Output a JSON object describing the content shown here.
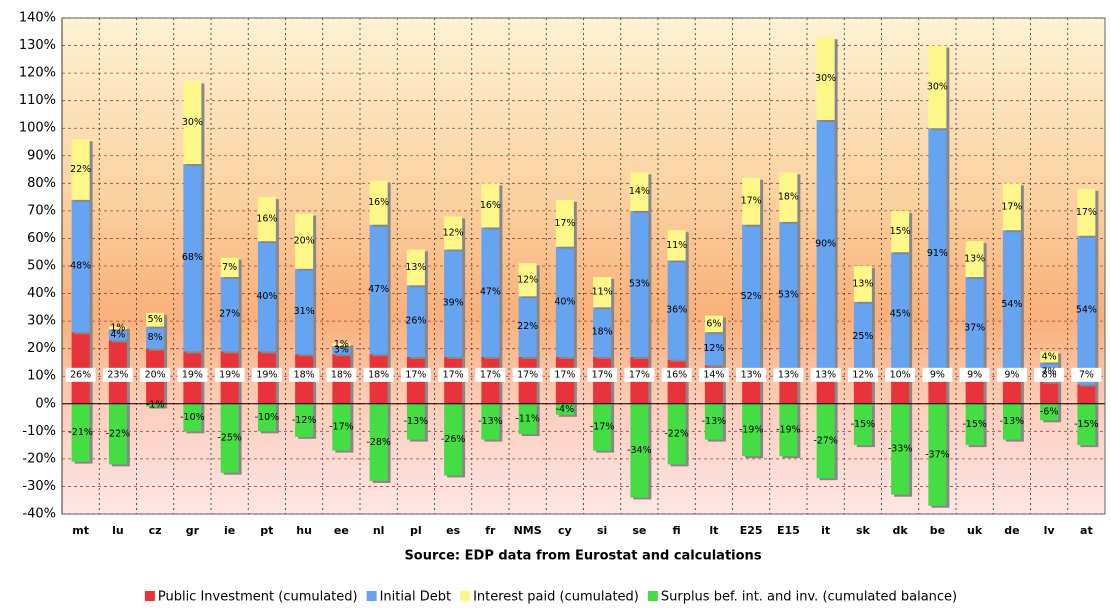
{
  "chart_data": {
    "type": "stacked_bar",
    "x_label": "Source: EDP data from Eurostat and calculations",
    "categories": [
      "mt",
      "lu",
      "cz",
      "gr",
      "ie",
      "pt",
      "hu",
      "ee",
      "nl",
      "pl",
      "es",
      "fr",
      "NMS",
      "cy",
      "si",
      "se",
      "fi",
      "lt",
      "E25",
      "E15",
      "it",
      "sk",
      "dk",
      "be",
      "uk",
      "de",
      "lv",
      "at"
    ],
    "series": [
      {
        "name": "Public Investment (cumulated)",
        "color": "#e8333a",
        "values": [
          26,
          23,
          20,
          19,
          19,
          19,
          18,
          18,
          18,
          17,
          17,
          17,
          17,
          17,
          17,
          17,
          16,
          14,
          13,
          13,
          13,
          12,
          10,
          9,
          9,
          9,
          8,
          7
        ],
        "value_labels": [
          "26%",
          "23%",
          "20%",
          "19%",
          "19%",
          "19%",
          "18%",
          "18%",
          "18%",
          "17%",
          "17%",
          "17%",
          "17%",
          "17%",
          "17%",
          "17%",
          "16%",
          "14%",
          "13%",
          "13%",
          "13%",
          "12%",
          "10%",
          "9%",
          "9%",
          "9%",
          "8%",
          "7%"
        ]
      },
      {
        "name": "Initial Debt",
        "color": "#66a3f0",
        "values": [
          48,
          4,
          8,
          68,
          27,
          40,
          31,
          3,
          47,
          26,
          39,
          47,
          22,
          40,
          18,
          53,
          36,
          12,
          52,
          53,
          90,
          25,
          45,
          91,
          37,
          54,
          7,
          54
        ],
        "value_labels": [
          "48%",
          "4%",
          "8%",
          "68%",
          "27%",
          "40%",
          "31%",
          "3%",
          "47%",
          "26%",
          "39%",
          "47%",
          "22%",
          "40%",
          "18%",
          "53%",
          "36%",
          "12%",
          "52%",
          "53%",
          "90%",
          "25%",
          "45%",
          "91%",
          "37%",
          "54%",
          "7%",
          "54%"
        ]
      },
      {
        "name": "Interest paid (cumulated)",
        "color": "#fdf78a",
        "values": [
          22,
          1,
          5,
          30,
          7,
          16,
          20,
          1,
          16,
          13,
          12,
          16,
          12,
          17,
          11,
          14,
          11,
          6,
          17,
          18,
          30,
          13,
          15,
          30,
          13,
          17,
          4,
          17
        ],
        "value_labels": [
          "22%",
          "1%",
          "5%",
          "30%",
          "7%",
          "16%",
          "20%",
          "1%",
          "16%",
          "13%",
          "12%",
          "16%",
          "12%",
          "17%",
          "11%",
          "14%",
          "11%",
          "6%",
          "17%",
          "18%",
          "30%",
          "13%",
          "15%",
          "30%",
          "13%",
          "17%",
          "4%",
          "17%"
        ]
      },
      {
        "name": "Surplus bef. int. and inv. (cumulated balance)",
        "color": "#44dd44",
        "values": [
          -21,
          -22,
          -1,
          -10,
          -25,
          -10,
          -12,
          -17,
          -28,
          -13,
          -26,
          -13,
          -11,
          -4,
          -17,
          -34,
          -22,
          -13,
          -19,
          -19,
          -27,
          -15,
          -33,
          -37,
          -15,
          -13,
          -6,
          -15
        ],
        "value_labels": [
          "-21%",
          "-22%",
          "-1%",
          "-10%",
          "-25%",
          "-10%",
          "-12%",
          "-17%",
          "-28%",
          "-13%",
          "-26%",
          "-13%",
          "-11%",
          "-4%",
          "-17%",
          "-34%",
          "-22%",
          "-13%",
          "-19%",
          "-19%",
          "-27%",
          "-15%",
          "-33%",
          "-37%",
          "-15%",
          "-13%",
          "-6%",
          "-15%"
        ]
      }
    ],
    "ylim": [
      -40,
      140
    ],
    "yticks": [
      {
        "value": -40,
        "label": "-40%"
      },
      {
        "value": -30,
        "label": "-30%"
      },
      {
        "value": -20,
        "label": "-20%"
      },
      {
        "value": -10,
        "label": "-10%"
      },
      {
        "value": 0,
        "label": "0%"
      },
      {
        "value": 10,
        "label": "10%"
      },
      {
        "value": 20,
        "label": "20%"
      },
      {
        "value": 30,
        "label": "30%"
      },
      {
        "value": 40,
        "label": "40%"
      },
      {
        "value": 50,
        "label": "50%"
      },
      {
        "value": 60,
        "label": "60%"
      },
      {
        "value": 70,
        "label": "70%"
      },
      {
        "value": 80,
        "label": "80%"
      },
      {
        "value": 90,
        "label": "90%"
      },
      {
        "value": 100,
        "label": "100%"
      },
      {
        "value": 110,
        "label": "110%"
      },
      {
        "value": 120,
        "label": "120%"
      },
      {
        "value": 130,
        "label": "130%"
      },
      {
        "value": 140,
        "label": "140%"
      }
    ],
    "grid": true,
    "legend": "bottom"
  }
}
